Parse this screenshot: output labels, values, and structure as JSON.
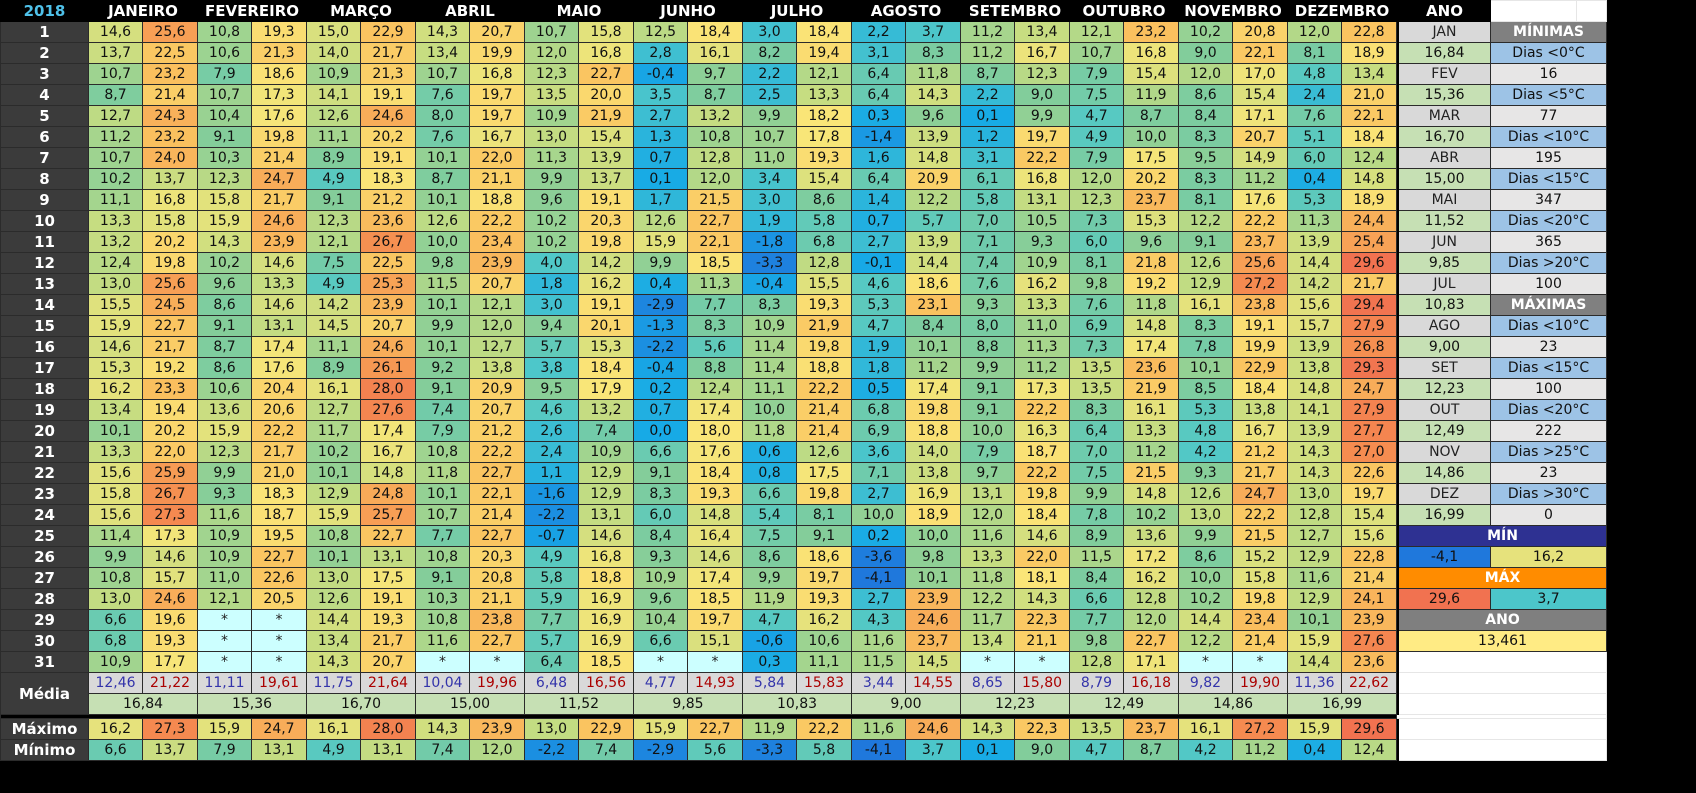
{
  "year": "2018",
  "months": [
    "JANEIRO",
    "FEVEREIRO",
    "MARÇO",
    "ABRIL",
    "MAIO",
    "JUNHO",
    "JULHO",
    "AGOSTO",
    "SETEMBRO",
    "OUTUBRO",
    "NOVEMBRO",
    "DEZEMBRO"
  ],
  "ano_header": "ANO",
  "days": [
    [
      [
        14.6,
        25.6
      ],
      [
        10.8,
        19.3
      ],
      [
        15.0,
        22.9
      ],
      [
        14.3,
        20.7
      ],
      [
        10.7,
        15.8
      ],
      [
        12.5,
        18.4
      ],
      [
        3.0,
        18.4
      ],
      [
        2.2,
        3.7
      ],
      [
        11.2,
        13.4
      ],
      [
        12.1,
        23.2
      ],
      [
        10.2,
        20.8
      ],
      [
        12.0,
        22.8
      ]
    ],
    [
      [
        13.7,
        22.5
      ],
      [
        10.6,
        21.3
      ],
      [
        14.0,
        21.7
      ],
      [
        13.4,
        19.9
      ],
      [
        12.0,
        16.8
      ],
      [
        2.8,
        16.1
      ],
      [
        8.2,
        19.4
      ],
      [
        3.1,
        8.3
      ],
      [
        11.2,
        16.7
      ],
      [
        10.7,
        16.8
      ],
      [
        9.0,
        22.1
      ],
      [
        8.1,
        18.9
      ]
    ],
    [
      [
        10.7,
        23.2
      ],
      [
        7.9,
        18.6
      ],
      [
        10.9,
        21.3
      ],
      [
        10.7,
        16.8
      ],
      [
        12.3,
        22.7
      ],
      [
        -0.4,
        9.7
      ],
      [
        2.2,
        12.1
      ],
      [
        6.4,
        11.8
      ],
      [
        8.7,
        12.3
      ],
      [
        7.9,
        15.4
      ],
      [
        12.0,
        17.0
      ],
      [
        4.8,
        13.4
      ]
    ],
    [
      [
        8.7,
        21.4
      ],
      [
        10.7,
        17.3
      ],
      [
        14.1,
        19.1
      ],
      [
        7.6,
        19.7
      ],
      [
        13.5,
        20.0
      ],
      [
        3.5,
        8.7
      ],
      [
        2.5,
        13.3
      ],
      [
        6.4,
        14.3
      ],
      [
        2.2,
        9.0
      ],
      [
        7.5,
        11.9
      ],
      [
        8.6,
        15.4
      ],
      [
        2.4,
        21.0
      ]
    ],
    [
      [
        12.7,
        24.3
      ],
      [
        10.4,
        17.6
      ],
      [
        12.6,
        24.6
      ],
      [
        8.0,
        19.7
      ],
      [
        10.9,
        21.9
      ],
      [
        2.7,
        13.2
      ],
      [
        9.9,
        18.2
      ],
      [
        0.3,
        9.6
      ],
      [
        0.1,
        9.9
      ],
      [
        4.7,
        8.7
      ],
      [
        8.4,
        17.1
      ],
      [
        7.6,
        22.1
      ]
    ],
    [
      [
        11.2,
        23.2
      ],
      [
        9.1,
        19.8
      ],
      [
        11.1,
        20.2
      ],
      [
        7.6,
        16.7
      ],
      [
        13.0,
        15.4
      ],
      [
        1.3,
        10.8
      ],
      [
        10.7,
        17.8
      ],
      [
        -1.4,
        13.9
      ],
      [
        1.2,
        19.7
      ],
      [
        4.9,
        10.0
      ],
      [
        8.3,
        20.7
      ],
      [
        5.1,
        18.4
      ]
    ],
    [
      [
        10.7,
        24.0
      ],
      [
        10.3,
        21.4
      ],
      [
        8.9,
        19.1
      ],
      [
        10.1,
        22.0
      ],
      [
        11.3,
        13.9
      ],
      [
        0.7,
        12.8
      ],
      [
        11.0,
        19.3
      ],
      [
        1.6,
        14.8
      ],
      [
        3.1,
        22.2
      ],
      [
        7.9,
        17.5
      ],
      [
        9.5,
        14.9
      ],
      [
        6.0,
        12.4
      ]
    ],
    [
      [
        10.2,
        13.7
      ],
      [
        12.3,
        24.7
      ],
      [
        4.9,
        18.3
      ],
      [
        8.7,
        21.1
      ],
      [
        9.9,
        13.7
      ],
      [
        0.1,
        12.0
      ],
      [
        3.4,
        15.4
      ],
      [
        6.4,
        20.9
      ],
      [
        6.1,
        16.8
      ],
      [
        12.0,
        20.2
      ],
      [
        8.3,
        11.2
      ],
      [
        0.4,
        14.8
      ]
    ],
    [
      [
        11.1,
        16.8
      ],
      [
        15.8,
        21.7
      ],
      [
        9.1,
        21.2
      ],
      [
        10.1,
        18.8
      ],
      [
        9.6,
        19.1
      ],
      [
        1.7,
        21.5
      ],
      [
        3.0,
        8.6
      ],
      [
        1.4,
        12.2
      ],
      [
        5.8,
        13.1
      ],
      [
        12.3,
        23.7
      ],
      [
        8.1,
        17.6
      ],
      [
        5.3,
        18.9
      ]
    ],
    [
      [
        13.3,
        15.8
      ],
      [
        15.9,
        24.6
      ],
      [
        12.3,
        23.6
      ],
      [
        12.6,
        22.2
      ],
      [
        10.2,
        20.3
      ],
      [
        12.6,
        22.7
      ],
      [
        1.9,
        5.8
      ],
      [
        0.7,
        5.7
      ],
      [
        7.0,
        10.5
      ],
      [
        7.3,
        15.3
      ],
      [
        12.2,
        22.2
      ],
      [
        11.3,
        24.4
      ]
    ],
    [
      [
        13.2,
        20.2
      ],
      [
        14.3,
        23.9
      ],
      [
        12.1,
        26.7
      ],
      [
        10.0,
        23.4
      ],
      [
        10.2,
        19.8
      ],
      [
        15.9,
        22.1
      ],
      [
        -1.8,
        6.8
      ],
      [
        2.7,
        13.9
      ],
      [
        7.1,
        9.3
      ],
      [
        6.0,
        9.6
      ],
      [
        9.1,
        23.7
      ],
      [
        13.9,
        25.4
      ]
    ],
    [
      [
        12.4,
        19.8
      ],
      [
        10.2,
        14.6
      ],
      [
        7.5,
        22.5
      ],
      [
        9.8,
        23.9
      ],
      [
        4.0,
        14.2
      ],
      [
        9.9,
        18.5
      ],
      [
        -3.3,
        12.8
      ],
      [
        -0.1,
        14.4
      ],
      [
        7.4,
        10.9
      ],
      [
        8.1,
        21.8
      ],
      [
        12.6,
        25.6
      ],
      [
        14.4,
        29.6
      ]
    ],
    [
      [
        13.0,
        25.6
      ],
      [
        9.6,
        13.3
      ],
      [
        4.9,
        25.3
      ],
      [
        11.5,
        20.7
      ],
      [
        1.8,
        16.2
      ],
      [
        0.4,
        11.3
      ],
      [
        -0.4,
        15.5
      ],
      [
        4.6,
        18.6
      ],
      [
        7.6,
        16.2
      ],
      [
        9.8,
        19.2
      ],
      [
        12.9,
        27.2
      ],
      [
        14.2,
        21.7
      ]
    ],
    [
      [
        15.5,
        24.5
      ],
      [
        8.6,
        14.6
      ],
      [
        14.2,
        23.9
      ],
      [
        10.1,
        12.1
      ],
      [
        3.0,
        19.1
      ],
      [
        -2.9,
        7.7
      ],
      [
        8.3,
        19.3
      ],
      [
        5.3,
        23.1
      ],
      [
        9.3,
        13.3
      ],
      [
        7.6,
        11.8
      ],
      [
        16.1,
        23.8
      ],
      [
        15.6,
        29.4
      ]
    ],
    [
      [
        15.9,
        22.7
      ],
      [
        9.1,
        13.1
      ],
      [
        14.5,
        20.7
      ],
      [
        9.9,
        12.0
      ],
      [
        9.4,
        20.1
      ],
      [
        -1.3,
        8.3
      ],
      [
        10.9,
        21.9
      ],
      [
        4.7,
        8.4
      ],
      [
        8.0,
        11.0
      ],
      [
        6.9,
        14.8
      ],
      [
        8.3,
        19.1
      ],
      [
        15.7,
        27.9
      ]
    ],
    [
      [
        14.6,
        21.7
      ],
      [
        8.7,
        17.4
      ],
      [
        11.1,
        24.6
      ],
      [
        10.1,
        12.7
      ],
      [
        5.7,
        15.3
      ],
      [
        -2.2,
        5.6
      ],
      [
        11.4,
        19.8
      ],
      [
        1.9,
        10.1
      ],
      [
        8.8,
        11.3
      ],
      [
        7.3,
        17.4
      ],
      [
        7.8,
        19.9
      ],
      [
        13.9,
        26.8
      ]
    ],
    [
      [
        15.3,
        19.2
      ],
      [
        8.6,
        17.6
      ],
      [
        8.9,
        26.1
      ],
      [
        9.2,
        13.8
      ],
      [
        3.8,
        18.4
      ],
      [
        -0.4,
        8.8
      ],
      [
        11.4,
        18.8
      ],
      [
        1.8,
        11.2
      ],
      [
        9.9,
        11.2
      ],
      [
        13.5,
        23.6
      ],
      [
        10.1,
        22.9
      ],
      [
        13.8,
        29.3
      ]
    ],
    [
      [
        16.2,
        23.3
      ],
      [
        10.6,
        20.4
      ],
      [
        16.1,
        28.0
      ],
      [
        9.1,
        20.9
      ],
      [
        9.5,
        17.9
      ],
      [
        0.2,
        12.4
      ],
      [
        11.1,
        22.2
      ],
      [
        0.5,
        17.4
      ],
      [
        9.1,
        17.3
      ],
      [
        13.5,
        21.9
      ],
      [
        8.5,
        18.4
      ],
      [
        14.8,
        24.7
      ]
    ],
    [
      [
        13.4,
        19.4
      ],
      [
        13.6,
        20.6
      ],
      [
        12.7,
        27.6
      ],
      [
        7.4,
        20.7
      ],
      [
        4.6,
        13.2
      ],
      [
        0.7,
        17.4
      ],
      [
        10.0,
        21.4
      ],
      [
        6.8,
        19.8
      ],
      [
        9.1,
        22.2
      ],
      [
        8.3,
        16.1
      ],
      [
        5.3,
        13.8
      ],
      [
        14.1,
        27.9
      ]
    ],
    [
      [
        10.1,
        20.2
      ],
      [
        15.9,
        22.2
      ],
      [
        11.7,
        17.4
      ],
      [
        7.9,
        21.2
      ],
      [
        2.6,
        7.4
      ],
      [
        0.0,
        18.0
      ],
      [
        11.8,
        21.4
      ],
      [
        6.9,
        18.8
      ],
      [
        10.0,
        16.3
      ],
      [
        6.4,
        13.3
      ],
      [
        4.8,
        16.7
      ],
      [
        13.9,
        27.7
      ]
    ],
    [
      [
        13.3,
        22.0
      ],
      [
        12.3,
        21.7
      ],
      [
        10.2,
        16.7
      ],
      [
        10.8,
        22.2
      ],
      [
        2.4,
        10.9
      ],
      [
        6.6,
        17.6
      ],
      [
        0.6,
        12.6
      ],
      [
        3.6,
        14.0
      ],
      [
        7.9,
        18.7
      ],
      [
        7.0,
        11.2
      ],
      [
        4.2,
        21.2
      ],
      [
        14.3,
        27.0
      ]
    ],
    [
      [
        15.6,
        25.9
      ],
      [
        9.9,
        21.0
      ],
      [
        10.1,
        14.8
      ],
      [
        11.8,
        22.7
      ],
      [
        1.1,
        12.9
      ],
      [
        9.1,
        18.4
      ],
      [
        0.8,
        17.5
      ],
      [
        7.1,
        13.8
      ],
      [
        9.7,
        22.2
      ],
      [
        7.5,
        21.5
      ],
      [
        9.3,
        21.7
      ],
      [
        14.3,
        22.6
      ]
    ],
    [
      [
        15.8,
        26.7
      ],
      [
        9.3,
        18.3
      ],
      [
        12.9,
        24.8
      ],
      [
        10.1,
        22.1
      ],
      [
        -1.6,
        12.9
      ],
      [
        8.3,
        19.3
      ],
      [
        6.6,
        19.8
      ],
      [
        2.7,
        16.9
      ],
      [
        13.1,
        19.8
      ],
      [
        9.9,
        14.8
      ],
      [
        12.6,
        24.7
      ],
      [
        13.0,
        19.7
      ]
    ],
    [
      [
        15.6,
        27.3
      ],
      [
        11.6,
        18.7
      ],
      [
        15.9,
        25.7
      ],
      [
        10.7,
        21.4
      ],
      [
        -2.2,
        13.1
      ],
      [
        6.0,
        14.8
      ],
      [
        5.4,
        8.1
      ],
      [
        10.0,
        18.9
      ],
      [
        12.0,
        18.4
      ],
      [
        7.8,
        10.2
      ],
      [
        13.0,
        22.2
      ],
      [
        12.8,
        15.4
      ]
    ],
    [
      [
        11.4,
        17.3
      ],
      [
        10.9,
        19.5
      ],
      [
        10.8,
        22.7
      ],
      [
        7.7,
        22.7
      ],
      [
        -0.7,
        14.6
      ],
      [
        8.4,
        16.4
      ],
      [
        7.5,
        9.1
      ],
      [
        0.2,
        10.0
      ],
      [
        11.6,
        14.6
      ],
      [
        8.9,
        13.6
      ],
      [
        9.9,
        21.5
      ],
      [
        12.7,
        15.6
      ]
    ],
    [
      [
        9.9,
        14.6
      ],
      [
        10.9,
        22.7
      ],
      [
        10.1,
        13.1
      ],
      [
        10.8,
        20.3
      ],
      [
        4.9,
        16.8
      ],
      [
        9.3,
        14.6
      ],
      [
        8.6,
        18.6
      ],
      [
        -3.6,
        9.8
      ],
      [
        13.3,
        22.0
      ],
      [
        11.5,
        17.2
      ],
      [
        8.6,
        15.2
      ],
      [
        12.9,
        22.8
      ]
    ],
    [
      [
        10.8,
        15.7
      ],
      [
        11.0,
        22.6
      ],
      [
        13.0,
        17.5
      ],
      [
        9.1,
        20.8
      ],
      [
        5.8,
        18.8
      ],
      [
        10.9,
        17.4
      ],
      [
        9.9,
        19.7
      ],
      [
        -4.1,
        10.1
      ],
      [
        11.8,
        18.1
      ],
      [
        8.4,
        16.2
      ],
      [
        10.0,
        15.8
      ],
      [
        11.6,
        21.4
      ]
    ],
    [
      [
        13.0,
        24.6
      ],
      [
        12.1,
        20.5
      ],
      [
        12.6,
        19.1
      ],
      [
        10.3,
        21.1
      ],
      [
        5.9,
        16.9
      ],
      [
        9.6,
        18.5
      ],
      [
        11.9,
        19.3
      ],
      [
        2.7,
        23.9
      ],
      [
        12.2,
        14.3
      ],
      [
        6.6,
        12.8
      ],
      [
        10.2,
        19.8
      ],
      [
        12.9,
        24.1
      ]
    ],
    [
      [
        6.6,
        19.6
      ],
      [
        "*",
        "*"
      ],
      [
        14.4,
        19.3
      ],
      [
        10.8,
        23.8
      ],
      [
        7.7,
        16.9
      ],
      [
        10.4,
        19.7
      ],
      [
        4.7,
        16.2
      ],
      [
        4.3,
        24.6
      ],
      [
        11.7,
        22.3
      ],
      [
        7.7,
        12.0
      ],
      [
        14.4,
        23.4
      ],
      [
        10.1,
        23.9
      ]
    ],
    [
      [
        6.8,
        19.3
      ],
      [
        "*",
        "*"
      ],
      [
        13.4,
        21.7
      ],
      [
        11.6,
        22.7
      ],
      [
        5.7,
        16.9
      ],
      [
        6.6,
        15.1
      ],
      [
        -0.6,
        10.6
      ],
      [
        11.6,
        23.7
      ],
      [
        13.4,
        21.1
      ],
      [
        9.8,
        22.7
      ],
      [
        12.2,
        21.4
      ],
      [
        15.9,
        27.6
      ]
    ],
    [
      [
        10.9,
        17.7
      ],
      [
        "*",
        "*"
      ],
      [
        14.3,
        20.7
      ],
      [
        "*",
        "*"
      ],
      [
        6.4,
        18.5
      ],
      [
        "*",
        "*"
      ],
      [
        0.3,
        11.1
      ],
      [
        11.5,
        14.5
      ],
      [
        "*",
        "*"
      ],
      [
        12.8,
        17.1
      ],
      [
        "*",
        "*"
      ],
      [
        14.4,
        23.6
      ]
    ]
  ],
  "media_label": "Média",
  "media": [
    [
      "12,46",
      "21,22"
    ],
    [
      "11,11",
      "19,61"
    ],
    [
      "11,75",
      "21,64"
    ],
    [
      "10,04",
      "19,96"
    ],
    [
      "6,48",
      "16,56"
    ],
    [
      "4,77",
      "14,93"
    ],
    [
      "5,84",
      "15,83"
    ],
    [
      "3,44",
      "14,55"
    ],
    [
      "8,65",
      "15,80"
    ],
    [
      "8,79",
      "16,18"
    ],
    [
      "9,82",
      "19,90"
    ],
    [
      "11,36",
      "22,62"
    ]
  ],
  "media_avg": [
    "16,84",
    "15,36",
    "16,70",
    "15,00",
    "11,52",
    "9,85",
    "10,83",
    "9,00",
    "12,23",
    "12,49",
    "14,86",
    "16,99"
  ],
  "maximo_label": "Máximo",
  "maximo": [
    [
      16.2,
      27.3
    ],
    [
      15.9,
      24.7
    ],
    [
      16.1,
      28.0
    ],
    [
      14.3,
      23.9
    ],
    [
      13.0,
      22.9
    ],
    [
      15.9,
      22.7
    ],
    [
      11.9,
      22.2
    ],
    [
      11.6,
      24.6
    ],
    [
      14.3,
      22.3
    ],
    [
      13.5,
      23.7
    ],
    [
      16.1,
      27.2
    ],
    [
      15.9,
      29.6
    ]
  ],
  "minimo_label": "Mínimo",
  "minimo": [
    [
      6.6,
      13.7
    ],
    [
      7.9,
      13.1
    ],
    [
      4.9,
      13.1
    ],
    [
      7.4,
      12.0
    ],
    [
      -2.2,
      7.4
    ],
    [
      -2.9,
      5.6
    ],
    [
      -3.3,
      5.8
    ],
    [
      -4.1,
      3.7
    ],
    [
      0.1,
      9.0
    ],
    [
      4.7,
      8.7
    ],
    [
      4.2,
      11.2
    ],
    [
      0.4,
      12.4
    ]
  ],
  "side": {
    "minimas_hdr": "MÍNIMAS",
    "maximas_hdr": "MÁXIMAS",
    "rows": [
      [
        "JAN",
        "MÍNIMAS"
      ],
      [
        "16,84",
        "Dias <0°C"
      ],
      [
        "FEV",
        "16"
      ],
      [
        "15,36",
        "Dias <5°C"
      ],
      [
        "MAR",
        "77"
      ],
      [
        "16,70",
        "Dias <10°C"
      ],
      [
        "ABR",
        "195"
      ],
      [
        "15,00",
        "Dias <15°C"
      ],
      [
        "MAI",
        "347"
      ],
      [
        "11,52",
        "Dias <20°C"
      ],
      [
        "JUN",
        "365"
      ],
      [
        "9,85",
        "Dias >20°C"
      ],
      [
        "JUL",
        "100"
      ],
      [
        "10,83",
        "MÁXIMAS"
      ],
      [
        "AGO",
        "Dias <10°C"
      ],
      [
        "9,00",
        "23"
      ],
      [
        "SET",
        "Dias <15°C"
      ],
      [
        "12,23",
        "100"
      ],
      [
        "OUT",
        "Dias <20°C"
      ],
      [
        "12,49",
        "222"
      ],
      [
        "NOV",
        "Dias >25°C"
      ],
      [
        "14,86",
        "23"
      ],
      [
        "DEZ",
        "Dias >30°C"
      ],
      [
        "16,99",
        "0"
      ]
    ],
    "min_label": "MÍN",
    "min_values": [
      "-4,1",
      "16,2"
    ],
    "max_label": "MÁX",
    "max_values": [
      "29,6",
      "3,7"
    ],
    "ano_label": "ANO",
    "ano_value": "13,461"
  }
}
